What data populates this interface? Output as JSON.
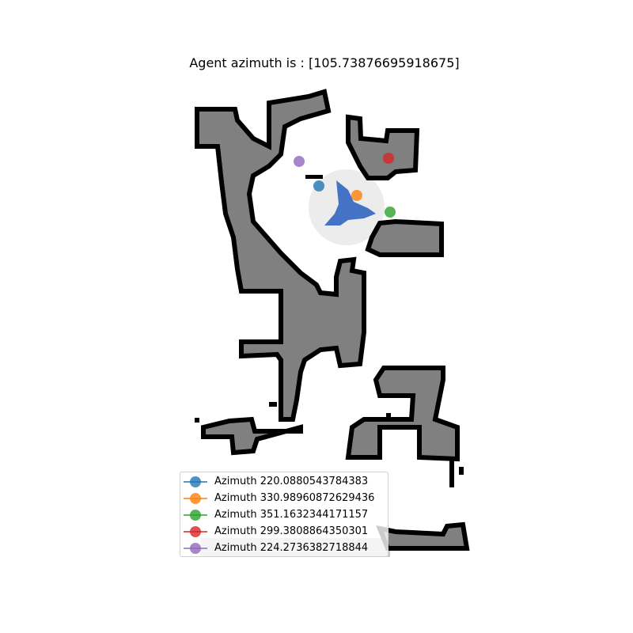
{
  "title": "Agent azimuth is : [105.73876695918675]",
  "legend": [
    {
      "label": "Azimuth 220.0880543784383",
      "color": "#1f77b4"
    },
    {
      "label": "Azimuth 330.98960872629436",
      "color": "#ff7f0e"
    },
    {
      "label": "Azimuth 351.1632344171157",
      "color": "#2ca02c"
    },
    {
      "label": "Azimuth 299.3808864350301",
      "color": "#d62728"
    },
    {
      "label": "Azimuth 224.2736382718844",
      "color": "#9467bd"
    }
  ],
  "colors": {
    "free": "#ffffff",
    "obstacle": "#808080",
    "wall": "#000000",
    "explored_light": "#ececec",
    "explored_dim": "#c8c8c8",
    "agent": "#4472c4"
  },
  "agent": {
    "azimuth": 105.73876695918675
  }
}
